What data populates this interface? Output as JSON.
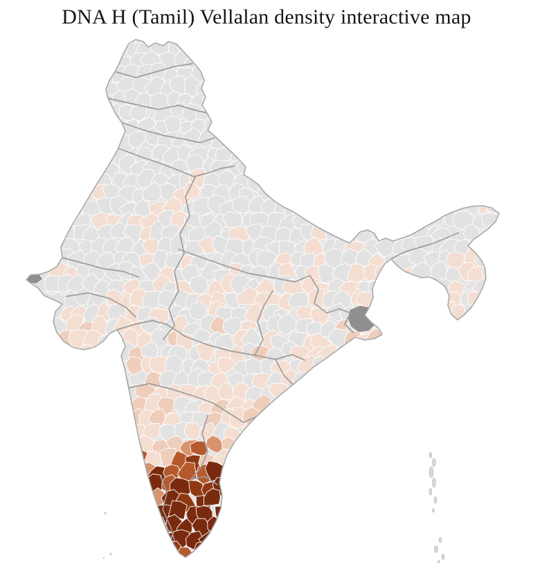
{
  "title": "DNA H (Tamil) Vellalan density interactive map",
  "map": {
    "palette": {
      "no_data_gray": "#e2e2e2",
      "light_density": "#f4ded2",
      "low_density": "#eecdba",
      "medium_density": "#d8936c",
      "high_density": "#b45a2c",
      "very_high_density": "#8f3912",
      "darkest_density": "#7a2a0e",
      "district_border": "#ffffff",
      "state_border": "#9c9c9c",
      "outline_gray": "#a8a8a8",
      "special_gray": "#8f8f8f",
      "island_gray": "#d8d8d8",
      "background": "#ffffff"
    }
  }
}
